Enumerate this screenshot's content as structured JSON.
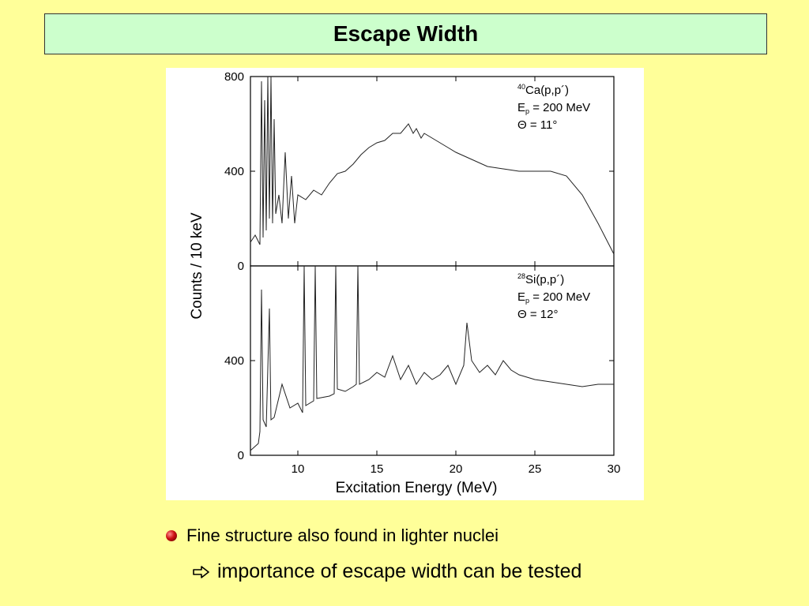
{
  "slide": {
    "title": "Escape Width",
    "bullet": "Fine structure also found in lighter nuclei",
    "sub_bullet": "importance of escape width can be tested",
    "bullet_icon": "red-sphere-bullet-icon",
    "arrow_icon": "hollow-right-arrow-icon",
    "colors": {
      "background": "#ffff99",
      "title_box": "#ccffcc",
      "bullet": "#cc1111"
    }
  },
  "chart_data": {
    "type": "line",
    "xlabel": "Excitation Energy (MeV)",
    "ylabel": "Counts / 10 keV",
    "xlim": [
      7,
      30
    ],
    "x_ticks": [
      "10",
      "15",
      "20",
      "25",
      "30"
    ],
    "panels": [
      {
        "annotation": {
          "mass": "40",
          "reaction": "Ca(p,p´)",
          "energy_sym": "E",
          "energy_sub": "p",
          "energy": " = 200 MeV",
          "angle": "Θ = 11°"
        },
        "ylim": [
          0,
          800
        ],
        "y_ticks": [
          "0",
          "400",
          "800"
        ],
        "series": [
          {
            "x": [
              7.0,
              7.3,
              7.6,
              7.7,
              7.8,
              7.9,
              8.0,
              8.1,
              8.2,
              8.3,
              8.4,
              8.5,
              8.6,
              8.8,
              9.0,
              9.2,
              9.4,
              9.6,
              9.8,
              10.0,
              10.5,
              11.0,
              11.5,
              12.0,
              12.5,
              13.0,
              13.5,
              14.0,
              14.5,
              15.0,
              15.5,
              16.0,
              16.5,
              17.0,
              17.3,
              17.5,
              17.8,
              18.0,
              18.5,
              19.0,
              19.5,
              20.0,
              21.0,
              22.0,
              23.0,
              24.0,
              25.0,
              26.0,
              27.0,
              28.0,
              29.0,
              30.0
            ],
            "y": [
              100,
              130,
              90,
              780,
              120,
              700,
              150,
              800,
              200,
              800,
              180,
              620,
              220,
              300,
              180,
              480,
              200,
              380,
              180,
              300,
              280,
              320,
              300,
              350,
              390,
              400,
              430,
              470,
              500,
              520,
              530,
              560,
              560,
              600,
              560,
              580,
              540,
              560,
              540,
              520,
              500,
              480,
              450,
              420,
              410,
              400,
              400,
              400,
              380,
              300,
              180,
              50
            ]
          }
        ]
      },
      {
        "annotation": {
          "mass": "28",
          "reaction": "Si(p,p´)",
          "energy_sym": "E",
          "energy_sub": "p",
          "energy": " = 200 MeV",
          "angle": "Θ = 12°"
        },
        "ylim": [
          0,
          800
        ],
        "y_ticks": [
          "0",
          "400"
        ],
        "series": [
          {
            "x": [
              7.0,
              7.5,
              7.6,
              7.7,
              7.8,
              8.0,
              8.2,
              8.3,
              8.5,
              9.0,
              9.5,
              10.0,
              10.3,
              10.4,
              10.5,
              11.0,
              11.1,
              11.2,
              12.0,
              12.3,
              12.4,
              12.5,
              13.0,
              13.5,
              13.7,
              13.8,
              13.9,
              14.5,
              15.0,
              15.5,
              16.0,
              16.5,
              17.0,
              17.5,
              18.0,
              18.5,
              19.0,
              19.5,
              20.0,
              20.5,
              20.7,
              21.0,
              21.5,
              22.0,
              22.5,
              23.0,
              23.5,
              24.0,
              25.0,
              26.0,
              27.0,
              28.0,
              29.0,
              30.0
            ],
            "y": [
              20,
              50,
              100,
              700,
              150,
              120,
              620,
              150,
              160,
              300,
              200,
              220,
              180,
              800,
              210,
              230,
              800,
              240,
              250,
              260,
              800,
              280,
              270,
              290,
              300,
              800,
              300,
              320,
              350,
              330,
              420,
              320,
              380,
              300,
              350,
              320,
              340,
              380,
              300,
              380,
              560,
              400,
              350,
              380,
              340,
              400,
              360,
              340,
              320,
              310,
              300,
              290,
              300,
              300
            ]
          }
        ]
      }
    ]
  }
}
